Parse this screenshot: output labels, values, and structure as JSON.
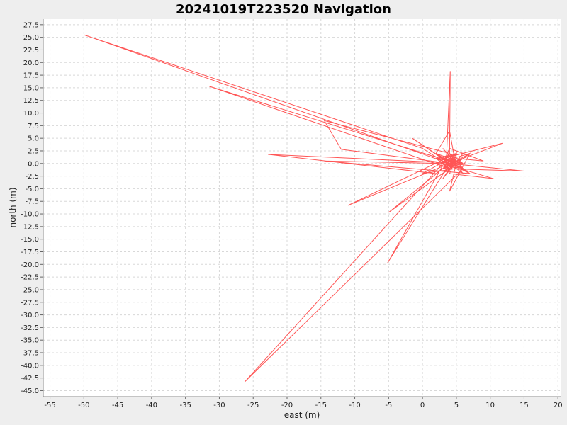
{
  "chart_data": {
    "type": "line",
    "title": "20241019T223520 Navigation",
    "xlabel": "east (m)",
    "ylabel": "north (m)",
    "xlim": [
      -56,
      20.5
    ],
    "ylim": [
      -46.2,
      28.6
    ],
    "xticks": [
      -55,
      -50,
      -45,
      -40,
      -35,
      -30,
      -25,
      -20,
      -15,
      -10,
      -5,
      0,
      5,
      10,
      15,
      20
    ],
    "yticks": [
      27.5,
      25.0,
      22.5,
      20.0,
      17.5,
      15.0,
      12.5,
      10.0,
      7.5,
      5.0,
      2.5,
      0.0,
      -2.5,
      -5.0,
      -7.5,
      -10.0,
      -12.5,
      -15.0,
      -17.5,
      -20.0,
      -22.5,
      -25.0,
      -27.5,
      -30.0,
      -32.5,
      -35.0,
      -37.5,
      -40.0,
      -42.5,
      -45.0
    ],
    "grid": true,
    "colors": {
      "line": "#ff5555",
      "plot_bg": "#ffffff",
      "grid": "#d8d8d8",
      "page_bg": "#eeeeee"
    },
    "series": [
      {
        "x": [
          4,
          3,
          5,
          2,
          6,
          3,
          5,
          4,
          2,
          6,
          3,
          5,
          4,
          7,
          2,
          4,
          5,
          3,
          6,
          4,
          4.1,
          3.5,
          0,
          -50,
          4,
          6,
          2,
          5,
          3,
          15,
          4,
          5,
          3,
          7,
          2,
          4,
          -31.5,
          5,
          3,
          6,
          4,
          -14.5,
          -12,
          4,
          5,
          3,
          11.8,
          4,
          2,
          -22.8,
          6,
          4,
          7,
          -14.5,
          3,
          5,
          -11,
          4,
          6,
          3,
          -5,
          5,
          4,
          -5.2,
          4,
          3,
          6,
          -26.2,
          3,
          5,
          4,
          10.5,
          3,
          5,
          4,
          2,
          6,
          3,
          7,
          4,
          5,
          3,
          -1.5,
          4,
          5,
          2,
          6,
          4,
          0,
          5,
          3,
          4,
          9,
          5,
          3,
          4
        ],
        "y": [
          0,
          1,
          -1,
          2,
          -2,
          3,
          0,
          -1,
          1,
          2,
          -3,
          1,
          0,
          -2,
          2,
          6.5,
          -1,
          1,
          0,
          2,
          18.3,
          0,
          3,
          25.5,
          0,
          -1,
          1,
          2,
          -1,
          -1.5,
          0,
          1,
          -2,
          2,
          0,
          -1,
          15.3,
          0,
          1,
          -1,
          2,
          8.5,
          2.8,
          0,
          -1,
          1,
          4,
          0,
          -2,
          1.8,
          0,
          1,
          -2,
          0.5,
          0,
          2,
          -8.3,
          0,
          1,
          -1,
          -9.7,
          0,
          2,
          -19.8,
          0,
          1,
          -1,
          -43.2,
          0,
          1,
          -2,
          -3,
          0,
          2,
          -1,
          1,
          0,
          -1,
          2,
          -5.5,
          0,
          1,
          5,
          0,
          -1,
          2,
          0,
          1,
          -2,
          -1,
          0,
          3,
          0.5,
          1,
          -1,
          0
        ]
      }
    ]
  }
}
